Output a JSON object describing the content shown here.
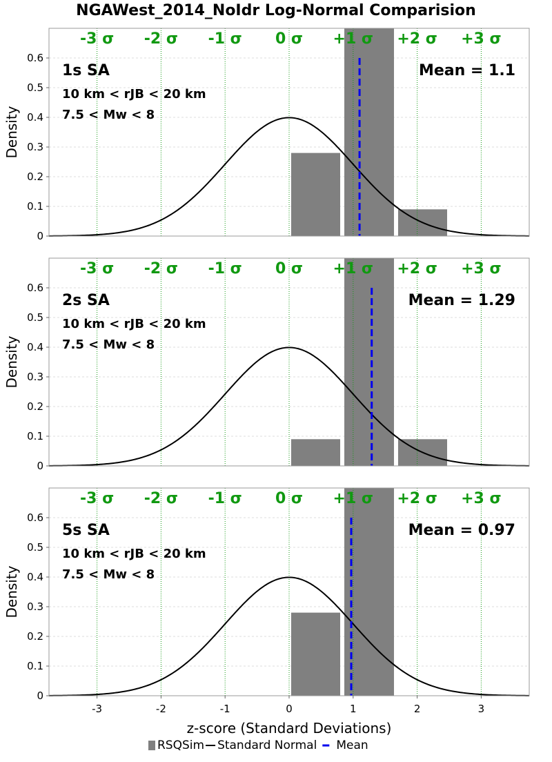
{
  "title": "NGAWest_2014_NoIdr Log-Normal Comparision",
  "x_axis_label": "z-score (Standard Deviations)",
  "colors": {
    "histogram": "#808080",
    "normal": "#000000",
    "mean": "#0000ee",
    "sigma": "#119911",
    "grid": "#dddddd"
  },
  "legend": [
    {
      "key": "hist",
      "label": "RSQSim"
    },
    {
      "key": "normal",
      "label": "Standard Normal"
    },
    {
      "key": "mean",
      "label": "Mean"
    }
  ],
  "chart_data": [
    {
      "type": "bar",
      "title": "1s SA",
      "subtitle_1": "10 km < rJB < 20 km",
      "subtitle_2": "7.5 < Mw < 8",
      "mean_label": "Mean = 1.1",
      "mean": 1.1,
      "ylabel": "Density",
      "xlim": [
        -3.75,
        3.75
      ],
      "ylim": [
        0,
        0.7
      ],
      "xticks": [
        -3,
        -2,
        -1,
        0,
        1,
        2,
        3
      ],
      "yticks": [
        0,
        0.1,
        0.2,
        0.3,
        0.4,
        0.5,
        0.6
      ],
      "sigma_labels": [
        "-3 σ",
        "-2 σ",
        "-1 σ",
        "0 σ",
        "+1 σ",
        "+2 σ",
        "+3 σ"
      ],
      "bins": [
        {
          "x0": 0.0,
          "x1": 0.83,
          "density": 0.28
        },
        {
          "x0": 0.83,
          "x1": 1.67,
          "density": 0.7
        },
        {
          "x0": 1.67,
          "x1": 2.5,
          "density": 0.09
        }
      ]
    },
    {
      "type": "bar",
      "title": "2s SA",
      "subtitle_1": "10 km < rJB < 20 km",
      "subtitle_2": "7.5 < Mw < 8",
      "mean_label": "Mean = 1.29",
      "mean": 1.29,
      "ylabel": "Density",
      "xlim": [
        -3.75,
        3.75
      ],
      "ylim": [
        0,
        0.7
      ],
      "xticks": [
        -3,
        -2,
        -1,
        0,
        1,
        2,
        3
      ],
      "yticks": [
        0,
        0.1,
        0.2,
        0.3,
        0.4,
        0.5,
        0.6
      ],
      "sigma_labels": [
        "-3 σ",
        "-2 σ",
        "-1 σ",
        "0 σ",
        "+1 σ",
        "+2 σ",
        "+3 σ"
      ],
      "bins": [
        {
          "x0": 0.0,
          "x1": 0.83,
          "density": 0.09
        },
        {
          "x0": 0.83,
          "x1": 1.67,
          "density": 0.7
        },
        {
          "x0": 1.67,
          "x1": 2.5,
          "density": 0.09
        }
      ]
    },
    {
      "type": "bar",
      "title": "5s SA",
      "subtitle_1": "10 km < rJB < 20 km",
      "subtitle_2": "7.5 < Mw < 8",
      "mean_label": "Mean = 0.97",
      "mean": 0.97,
      "ylabel": "Density",
      "xlim": [
        -3.75,
        3.75
      ],
      "ylim": [
        0,
        0.7
      ],
      "xticks": [
        -3,
        -2,
        -1,
        0,
        1,
        2,
        3
      ],
      "yticks": [
        0,
        0.1,
        0.2,
        0.3,
        0.4,
        0.5,
        0.6
      ],
      "sigma_labels": [
        "-3 σ",
        "-2 σ",
        "-1 σ",
        "0 σ",
        "+1 σ",
        "+2 σ",
        "+3 σ"
      ],
      "bins": [
        {
          "x0": 0.0,
          "x1": 0.83,
          "density": 0.28
        },
        {
          "x0": 0.83,
          "x1": 1.67,
          "density": 0.7
        }
      ]
    }
  ]
}
